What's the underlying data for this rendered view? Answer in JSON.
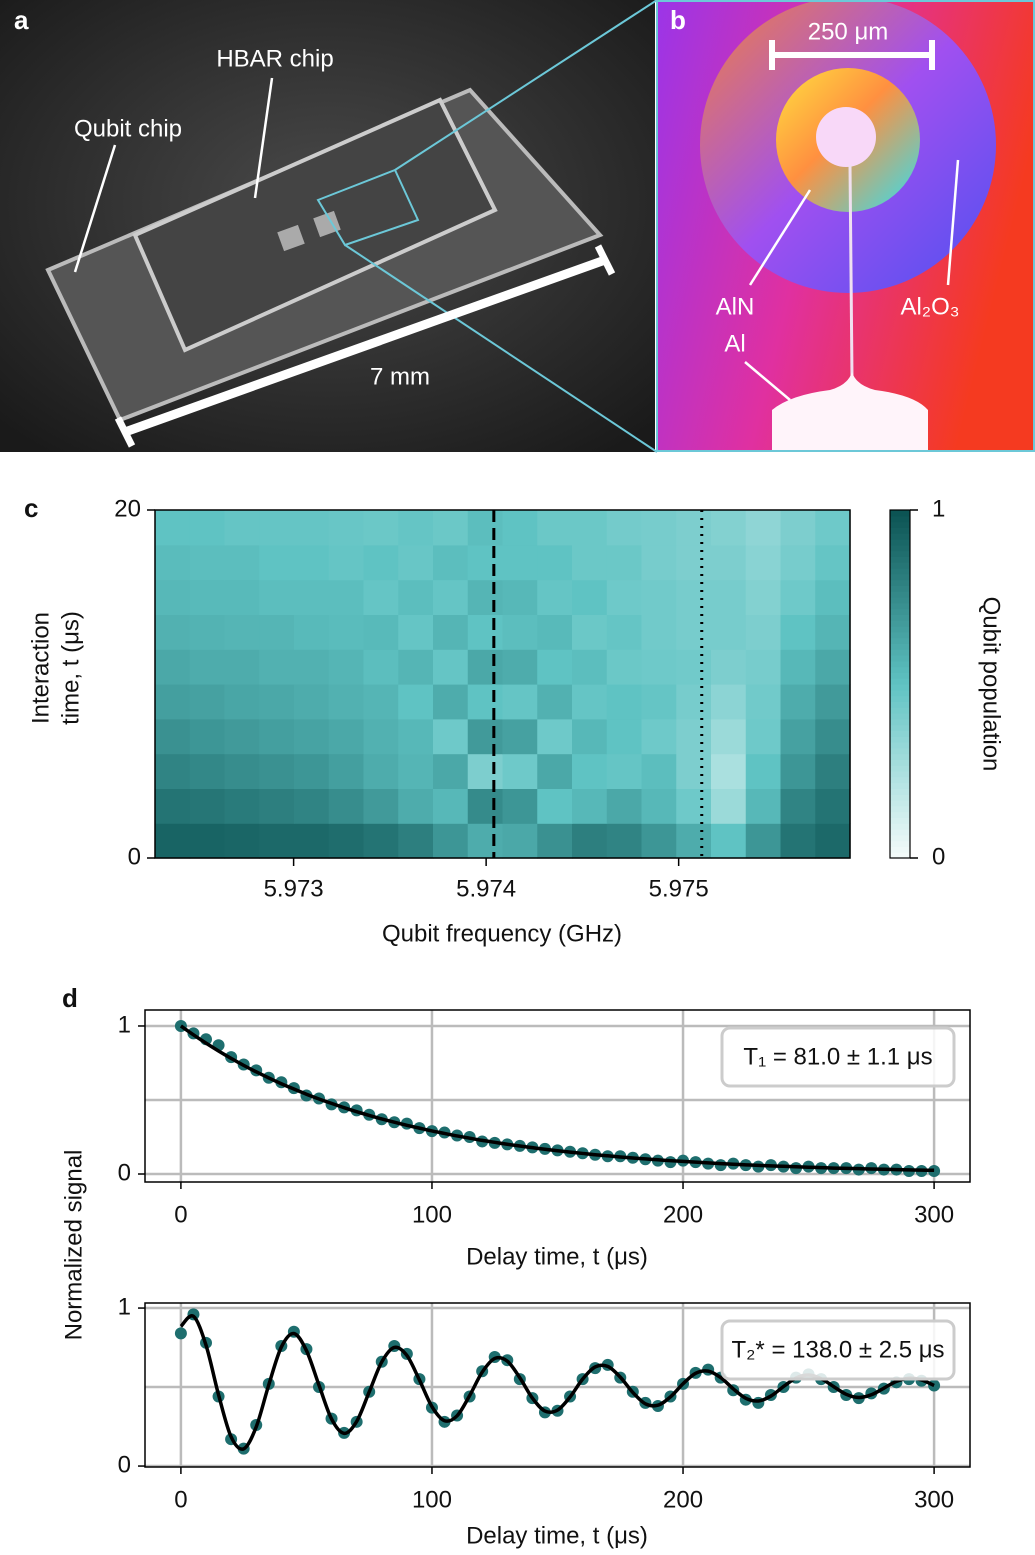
{
  "image_a": {
    "label": "a",
    "annotations": [
      "HBAR chip",
      "Qubit chip",
      "7 mm"
    ]
  },
  "image_b": {
    "label": "b",
    "annotations": [
      "250 μm",
      "AlN",
      "Al",
      "Al₂O₃"
    ]
  },
  "ylabel_d": "Normalized signal",
  "chart_data": [
    {
      "type": "heatmap",
      "panel": "c",
      "xlabel": "Qubit frequency (GHz)",
      "ylabel": [
        "Interaction",
        "time, t (μs)"
      ],
      "xlim": [
        5.97228,
        5.97589
      ],
      "xticks": [
        5.973,
        5.974,
        5.975
      ],
      "ylim": [
        0,
        20
      ],
      "yticks": [
        0,
        20
      ],
      "colorbar_label": "Qubit population",
      "clim": [
        0,
        1
      ],
      "cticks": [
        0,
        1
      ],
      "colormap": [
        "#f5fcfb",
        "#5fc3c3",
        "#0b5252"
      ],
      "vlines": [
        {
          "x": 5.97404,
          "style": "dashed"
        },
        {
          "x": 5.97512,
          "style": "dotted"
        }
      ],
      "z": [
        [
          0.92,
          0.92,
          0.91,
          0.9,
          0.9,
          0.88,
          0.85,
          0.8,
          0.7,
          0.6,
          0.62,
          0.72,
          0.8,
          0.78,
          0.7,
          0.6,
          0.5,
          0.7,
          0.85,
          0.9
        ],
        [
          0.85,
          0.84,
          0.82,
          0.8,
          0.78,
          0.74,
          0.68,
          0.6,
          0.55,
          0.75,
          0.7,
          0.5,
          0.55,
          0.62,
          0.55,
          0.45,
          0.3,
          0.55,
          0.78,
          0.85
        ],
        [
          0.78,
          0.76,
          0.74,
          0.72,
          0.7,
          0.66,
          0.6,
          0.56,
          0.62,
          0.4,
          0.45,
          0.62,
          0.5,
          0.48,
          0.52,
          0.4,
          0.25,
          0.5,
          0.7,
          0.8
        ],
        [
          0.72,
          0.7,
          0.68,
          0.66,
          0.64,
          0.62,
          0.58,
          0.55,
          0.45,
          0.68,
          0.65,
          0.45,
          0.55,
          0.5,
          0.45,
          0.4,
          0.3,
          0.45,
          0.65,
          0.74
        ],
        [
          0.66,
          0.65,
          0.63,
          0.62,
          0.6,
          0.58,
          0.56,
          0.5,
          0.6,
          0.5,
          0.48,
          0.58,
          0.48,
          0.5,
          0.48,
          0.42,
          0.35,
          0.44,
          0.6,
          0.68
        ],
        [
          0.62,
          0.6,
          0.6,
          0.58,
          0.58,
          0.56,
          0.52,
          0.56,
          0.48,
          0.62,
          0.6,
          0.5,
          0.52,
          0.46,
          0.45,
          0.44,
          0.4,
          0.42,
          0.55,
          0.62
        ],
        [
          0.58,
          0.57,
          0.56,
          0.56,
          0.54,
          0.53,
          0.54,
          0.48,
          0.56,
          0.5,
          0.52,
          0.54,
          0.46,
          0.48,
          0.44,
          0.42,
          0.42,
          0.4,
          0.5,
          0.56
        ],
        [
          0.55,
          0.54,
          0.54,
          0.52,
          0.52,
          0.52,
          0.48,
          0.52,
          0.48,
          0.56,
          0.55,
          0.48,
          0.5,
          0.45,
          0.44,
          0.42,
          0.42,
          0.38,
          0.45,
          0.52
        ],
        [
          0.53,
          0.52,
          0.52,
          0.5,
          0.5,
          0.48,
          0.5,
          0.47,
          0.52,
          0.5,
          0.5,
          0.5,
          0.46,
          0.46,
          0.42,
          0.4,
          0.4,
          0.36,
          0.42,
          0.48
        ],
        [
          0.5,
          0.5,
          0.48,
          0.48,
          0.48,
          0.47,
          0.46,
          0.48,
          0.46,
          0.52,
          0.5,
          0.46,
          0.46,
          0.43,
          0.42,
          0.4,
          0.38,
          0.34,
          0.4,
          0.45
        ]
      ]
    },
    {
      "type": "scatter",
      "panel": "d",
      "xlabel": "Delay time, t (μs)",
      "annotation": "T₁ = 81.0 ± 1.1 μs",
      "xlim": [
        -14.3,
        314.3
      ],
      "xticks": [
        0,
        100,
        200,
        300
      ],
      "ylim": [
        -0.054,
        1.108
      ],
      "yticks": [
        0,
        1
      ],
      "ygrid": [
        0,
        0.5,
        1
      ],
      "x": [
        0,
        5,
        10,
        15,
        20,
        25,
        30,
        35,
        40,
        45,
        50,
        55,
        60,
        65,
        70,
        75,
        80,
        85,
        90,
        95,
        100,
        105,
        110,
        115,
        120,
        125,
        130,
        135,
        140,
        145,
        150,
        155,
        160,
        165,
        170,
        175,
        180,
        185,
        190,
        195,
        200,
        205,
        210,
        215,
        220,
        225,
        230,
        235,
        240,
        245,
        250,
        255,
        260,
        265,
        270,
        275,
        280,
        285,
        290,
        295,
        300
      ],
      "series": [
        {
          "marker": "circle",
          "color": "#1e6e6e",
          "values": [
            1.0,
            0.95,
            0.91,
            0.87,
            0.79,
            0.74,
            0.7,
            0.65,
            0.62,
            0.58,
            0.53,
            0.51,
            0.47,
            0.45,
            0.43,
            0.4,
            0.37,
            0.35,
            0.34,
            0.31,
            0.29,
            0.28,
            0.26,
            0.25,
            0.22,
            0.21,
            0.2,
            0.19,
            0.18,
            0.17,
            0.16,
            0.15,
            0.14,
            0.13,
            0.12,
            0.12,
            0.11,
            0.1,
            0.09,
            0.08,
            0.09,
            0.08,
            0.07,
            0.06,
            0.07,
            0.06,
            0.05,
            0.06,
            0.05,
            0.04,
            0.05,
            0.04,
            0.04,
            0.04,
            0.03,
            0.04,
            0.03,
            0.03,
            0.02,
            0.02,
            0.02
          ]
        },
        {
          "marker": "line",
          "color": "#000000",
          "values": [
            1.0,
            0.94,
            0.884,
            0.831,
            0.781,
            0.734,
            0.69,
            0.649,
            0.61,
            0.574,
            0.539,
            0.507,
            0.477,
            0.448,
            0.421,
            0.396,
            0.372,
            0.35,
            0.329,
            0.31,
            0.291,
            0.274,
            0.257,
            0.242,
            0.227,
            0.214,
            0.201,
            0.189,
            0.178,
            0.167,
            0.157,
            0.148,
            0.139,
            0.13,
            0.123,
            0.115,
            0.108,
            0.102,
            0.096,
            0.09,
            0.085,
            0.08,
            0.075,
            0.07,
            0.066,
            0.062,
            0.058,
            0.055,
            0.052,
            0.049,
            0.046,
            0.043,
            0.04,
            0.038,
            0.036,
            0.034,
            0.032,
            0.03,
            0.028,
            0.026,
            0.025
          ]
        }
      ]
    },
    {
      "type": "scatter",
      "xlabel": "Delay time, t (μs)",
      "annotation": "T₂* = 138.0 ± 2.5 μs",
      "xlim": [
        -14.3,
        314.3
      ],
      "xticks": [
        0,
        100,
        200,
        300
      ],
      "ylim": [
        -0.006,
        1.032
      ],
      "yticks": [
        0,
        1
      ],
      "ygrid": [
        0,
        0.5,
        1
      ],
      "x": [
        0,
        5,
        10,
        15,
        20,
        25,
        30,
        35,
        40,
        45,
        50,
        55,
        60,
        65,
        70,
        75,
        80,
        85,
        90,
        95,
        100,
        105,
        110,
        115,
        120,
        125,
        130,
        135,
        140,
        145,
        150,
        155,
        160,
        165,
        170,
        175,
        180,
        185,
        190,
        195,
        200,
        205,
        210,
        215,
        220,
        225,
        230,
        235,
        240,
        245,
        250,
        255,
        260,
        265,
        270,
        275,
        280,
        285,
        290,
        295,
        300
      ],
      "series": [
        {
          "marker": "circle",
          "color": "#1e6e6e",
          "values": [
            0.84,
            0.96,
            0.78,
            0.44,
            0.17,
            0.11,
            0.26,
            0.52,
            0.76,
            0.85,
            0.74,
            0.5,
            0.3,
            0.21,
            0.28,
            0.47,
            0.66,
            0.76,
            0.71,
            0.55,
            0.37,
            0.28,
            0.32,
            0.44,
            0.6,
            0.69,
            0.67,
            0.55,
            0.43,
            0.34,
            0.35,
            0.44,
            0.55,
            0.62,
            0.64,
            0.56,
            0.47,
            0.4,
            0.38,
            0.44,
            0.52,
            0.59,
            0.61,
            0.56,
            0.48,
            0.42,
            0.4,
            0.45,
            0.5,
            0.56,
            0.58,
            0.55,
            0.5,
            0.45,
            0.43,
            0.46,
            0.49,
            0.53,
            0.55,
            0.54,
            0.51
          ]
        },
        {
          "marker": "line",
          "color": "#000000",
          "values": [
            0.884,
            0.948,
            0.765,
            0.451,
            0.185,
            0.109,
            0.248,
            0.514,
            0.753,
            0.839,
            0.731,
            0.512,
            0.298,
            0.207,
            0.282,
            0.469,
            0.659,
            0.751,
            0.7,
            0.545,
            0.376,
            0.287,
            0.318,
            0.446,
            0.594,
            0.681,
            0.664,
            0.559,
            0.43,
            0.348,
            0.354,
            0.437,
            0.55,
            0.627,
            0.631,
            0.563,
            0.466,
            0.394,
            0.385,
            0.438,
            0.521,
            0.587,
            0.601,
            0.56,
            0.489,
            0.429,
            0.412,
            0.443,
            0.503,
            0.557,
            0.576,
            0.553,
            0.503,
            0.454,
            0.434,
            0.451,
            0.493,
            0.536,
            0.556,
            0.545,
            0.51
          ]
        }
      ]
    }
  ]
}
